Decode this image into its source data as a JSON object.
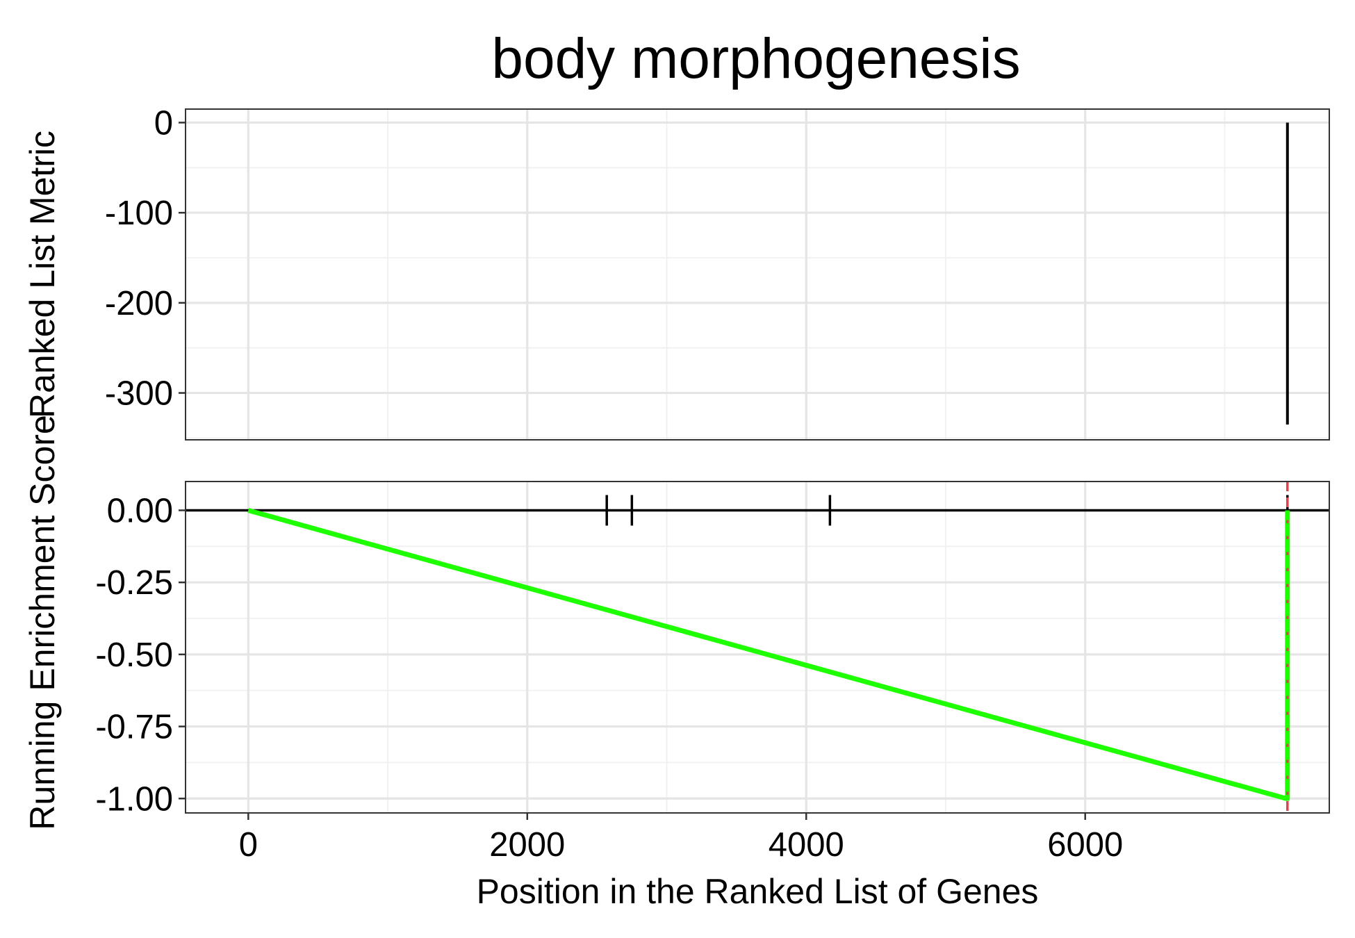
{
  "chart_data": [
    {
      "type": "line",
      "panel": "ranked-list-metric",
      "title": "body morphogenesis",
      "ylabel": "Ranked List Metric",
      "xlim": [
        -450,
        7750
      ],
      "ylim": [
        -352,
        15
      ],
      "x_ticks": [
        0,
        2000,
        4000,
        6000
      ],
      "y_ticks": [
        0,
        -100,
        -200,
        -300
      ],
      "y_tick_labels": [
        "0",
        "-100",
        "-200",
        "-300"
      ],
      "grid": true,
      "series": [
        {
          "x": [
            7450,
            7450
          ],
          "values": [
            0,
            -335
          ],
          "color": "#000000"
        }
      ]
    },
    {
      "type": "line",
      "panel": "running-enrichment-score",
      "xlabel": "Position in the Ranked List of Genes",
      "ylabel": "Running Enrichment Score",
      "xlim": [
        -450,
        7750
      ],
      "ylim": [
        -1.05,
        0.1
      ],
      "x_ticks": [
        0,
        2000,
        4000,
        6000
      ],
      "x_tick_labels": [
        "0",
        "2000",
        "4000",
        "6000"
      ],
      "y_ticks": [
        0.0,
        -0.25,
        -0.5,
        -0.75,
        -1.0
      ],
      "y_tick_labels": [
        "0.00",
        "-0.25",
        "-0.50",
        "-0.75",
        "-1.00"
      ],
      "grid": true,
      "zero_line": 0,
      "gene_hits_x": [
        2570,
        2750,
        4170,
        7450
      ],
      "peak_x": 7450,
      "peak_line_color": "#e0434b",
      "series": [
        {
          "x": [
            0,
            7440,
            7450,
            7450
          ],
          "values": [
            0,
            -1.0,
            -1.0,
            0
          ],
          "color": "#1eff00"
        }
      ]
    }
  ]
}
